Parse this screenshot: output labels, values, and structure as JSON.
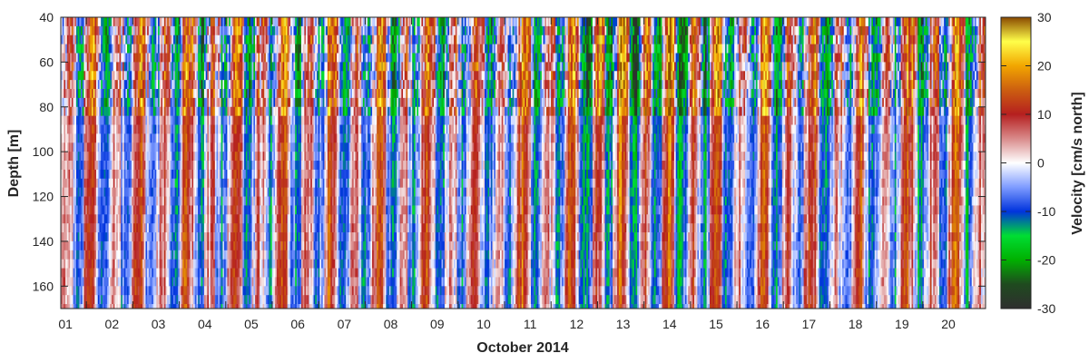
{
  "chart_data": {
    "type": "heatmap",
    "title": "",
    "xlabel": "October 2014",
    "ylabel": "Depth [m]",
    "colorbar_label": "Velocity [cm/s north]",
    "x_ticks": [
      "01",
      "02",
      "03",
      "04",
      "05",
      "06",
      "07",
      "08",
      "09",
      "10",
      "11",
      "12",
      "13",
      "14",
      "15",
      "16",
      "17",
      "18",
      "19",
      "20"
    ],
    "x_range_days": [
      0.45,
      20.35
    ],
    "y_ticks": [
      40,
      60,
      80,
      100,
      120,
      140,
      160
    ],
    "ylim": [
      40,
      170
    ],
    "y_reversed": true,
    "clim": [
      -30,
      30
    ],
    "colorbar_ticks": [
      30,
      20,
      10,
      0,
      -10,
      -20,
      -30
    ],
    "colormap_stops": [
      {
        "value": -30,
        "color": "#2f2f2f"
      },
      {
        "value": -25,
        "color": "#1f4a1f"
      },
      {
        "value": -20,
        "color": "#00b000"
      },
      {
        "value": -15,
        "color": "#00dd33"
      },
      {
        "value": -10,
        "color": "#0033dd"
      },
      {
        "value": -5,
        "color": "#7f9cff"
      },
      {
        "value": 0,
        "color": "#ffffff"
      },
      {
        "value": 5,
        "color": "#d98a8a"
      },
      {
        "value": 10,
        "color": "#b51f1f"
      },
      {
        "value": 15,
        "color": "#cc5e10"
      },
      {
        "value": 20,
        "color": "#f2a600"
      },
      {
        "value": 25,
        "color": "#ffff4a"
      },
      {
        "value": 30,
        "color": "#8a4a00"
      }
    ],
    "grid": false,
    "series_description_by_depth": [
      {
        "depth_range": [
          40,
          80
        ],
        "dominant": "mixed, strong positive and negative (-25 to 30)"
      },
      {
        "depth_range": [
          80,
          170
        ],
        "dominant": "alternating -10 to 12 tidal bands"
      }
    ]
  }
}
